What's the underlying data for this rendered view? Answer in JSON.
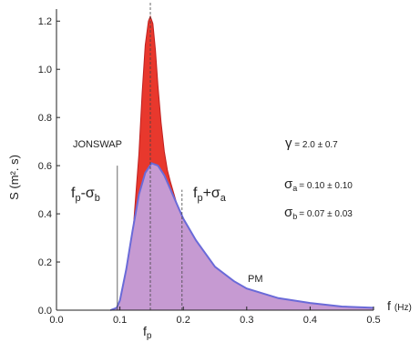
{
  "chart_data": {
    "type": "area",
    "title": "",
    "ylabel": "S (m². s)",
    "xlabel_f": "f",
    "xlabel_unit": "(Hz)",
    "xlim": [
      0.0,
      0.5
    ],
    "ylim": [
      0.0,
      1.25
    ],
    "grid": false,
    "x_ticks": [
      0.0,
      0.1,
      0.2,
      0.3,
      0.4,
      0.5
    ],
    "x_tick_labels": [
      "0.0",
      "0.1",
      "0.2",
      "0.3",
      "0.4",
      "0.5"
    ],
    "y_ticks": [
      0.0,
      0.2,
      0.4,
      0.6,
      0.8,
      1.0,
      1.2
    ],
    "y_tick_labels": [
      "0.0",
      "0.2",
      "0.4",
      "0.6",
      "0.8",
      "1.0",
      "1.2"
    ],
    "fp": 0.148,
    "fp_minus_sigma_b": 0.096,
    "fp_plus_sigma_a": 0.198,
    "series": [
      {
        "name": "JONSWAP",
        "color": "#e8382d",
        "x": [
          0.085,
          0.095,
          0.1,
          0.11,
          0.12,
          0.13,
          0.135,
          0.14,
          0.145,
          0.148,
          0.152,
          0.156,
          0.16,
          0.165,
          0.17,
          0.175,
          0.18,
          0.19,
          0.2,
          0.22,
          0.25,
          0.3,
          0.35,
          0.4,
          0.45,
          0.5
        ],
        "y": [
          0.0,
          0.01,
          0.04,
          0.12,
          0.3,
          0.65,
          0.9,
          1.1,
          1.2,
          1.22,
          1.19,
          1.08,
          0.93,
          0.78,
          0.66,
          0.58,
          0.53,
          0.44,
          0.37,
          0.26,
          0.16,
          0.08,
          0.045,
          0.025,
          0.015,
          0.01
        ]
      },
      {
        "name": "PM",
        "color": "#c69ad2",
        "x": [
          0.085,
          0.095,
          0.1,
          0.11,
          0.12,
          0.13,
          0.14,
          0.15,
          0.16,
          0.17,
          0.18,
          0.19,
          0.2,
          0.22,
          0.25,
          0.28,
          0.3,
          0.35,
          0.4,
          0.45,
          0.5
        ],
        "y": [
          0.0,
          0.01,
          0.04,
          0.17,
          0.33,
          0.48,
          0.57,
          0.61,
          0.6,
          0.56,
          0.5,
          0.44,
          0.38,
          0.29,
          0.18,
          0.12,
          0.09,
          0.05,
          0.03,
          0.015,
          0.01
        ]
      }
    ],
    "annotations": {
      "fp_label_main": "f",
      "fp_label_sub": "p",
      "fpmb_main": "f",
      "fpmb_sub1": "p",
      "fpmb_mid": "-σ",
      "fpmb_sub2": "b",
      "fppa_main": "f",
      "fppa_sub1": "p",
      "fppa_mid": "+σ",
      "fppa_sub2": "a",
      "gamma_sym": "γ",
      "gamma_val": " = 2.0 ± 0.7",
      "sa_sym": "σ",
      "sa_sub": "a",
      "sa_val": "= 0.10 ± 0.10",
      "sb_sym": "σ",
      "sb_sub": "b",
      "sb_val": "= 0.07 ± 0.03"
    }
  }
}
